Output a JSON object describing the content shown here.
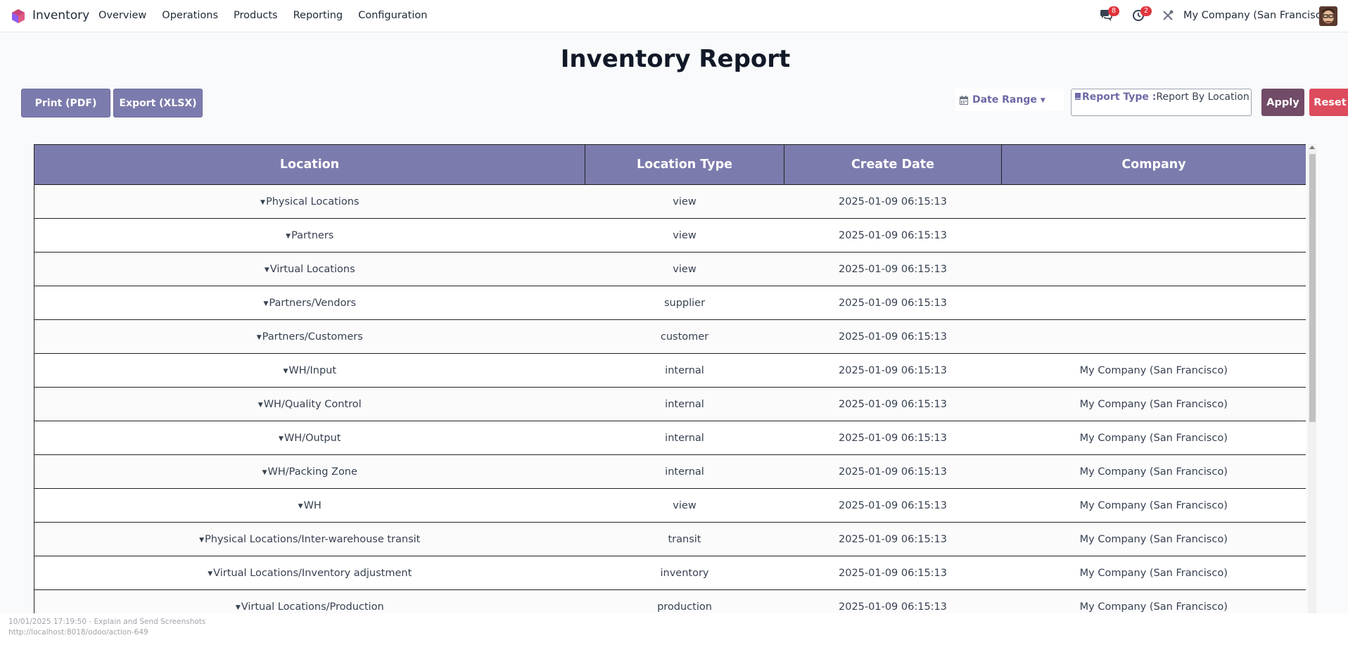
{
  "navbar": {
    "app_name": "Inventory",
    "menu": [
      "Overview",
      "Operations",
      "Products",
      "Reporting",
      "Configuration"
    ],
    "messages_badge": "8",
    "activities_badge": "2",
    "company": "My Company (San Francisco)"
  },
  "page": {
    "title": "Inventory Report"
  },
  "actions": {
    "print_label": "Print (PDF)",
    "export_label": "Export (XLSX)",
    "date_range_label": "Date Range",
    "report_type_label": "Report Type :",
    "report_type_value": "Report By Location",
    "apply_label": "Apply",
    "reset_label": "Reset"
  },
  "table": {
    "columns": [
      "Location",
      "Location Type",
      "Create Date",
      "Company"
    ],
    "rows": [
      {
        "location": "Physical Locations",
        "type": "view",
        "date": "2025-01-09 06:15:13",
        "company": ""
      },
      {
        "location": "Partners",
        "type": "view",
        "date": "2025-01-09 06:15:13",
        "company": ""
      },
      {
        "location": "Virtual Locations",
        "type": "view",
        "date": "2025-01-09 06:15:13",
        "company": ""
      },
      {
        "location": "Partners/Vendors",
        "type": "supplier",
        "date": "2025-01-09 06:15:13",
        "company": ""
      },
      {
        "location": "Partners/Customers",
        "type": "customer",
        "date": "2025-01-09 06:15:13",
        "company": ""
      },
      {
        "location": "WH/Input",
        "type": "internal",
        "date": "2025-01-09 06:15:13",
        "company": "My Company (San Francisco)"
      },
      {
        "location": "WH/Quality Control",
        "type": "internal",
        "date": "2025-01-09 06:15:13",
        "company": "My Company (San Francisco)"
      },
      {
        "location": "WH/Output",
        "type": "internal",
        "date": "2025-01-09 06:15:13",
        "company": "My Company (San Francisco)"
      },
      {
        "location": "WH/Packing Zone",
        "type": "internal",
        "date": "2025-01-09 06:15:13",
        "company": "My Company (San Francisco)"
      },
      {
        "location": "WH",
        "type": "view",
        "date": "2025-01-09 06:15:13",
        "company": "My Company (San Francisco)"
      },
      {
        "location": "Physical Locations/Inter-warehouse transit",
        "type": "transit",
        "date": "2025-01-09 06:15:13",
        "company": "My Company (San Francisco)"
      },
      {
        "location": "Virtual Locations/Inventory adjustment",
        "type": "inventory",
        "date": "2025-01-09 06:15:13",
        "company": "My Company (San Francisco)"
      },
      {
        "location": "Virtual Locations/Production",
        "type": "production",
        "date": "2025-01-09 06:15:13",
        "company": "My Company (San Francisco)"
      }
    ]
  },
  "footer": {
    "line1": "10/01/2025 17:19:50 - Explain and Send Screenshots",
    "line2": "http://localhost:8018/odoo/action-649"
  },
  "colors": {
    "header_purple": "#7c7bad",
    "apply": "#714b67",
    "reset": "#dc4c5c",
    "badge": "#e0343d"
  }
}
